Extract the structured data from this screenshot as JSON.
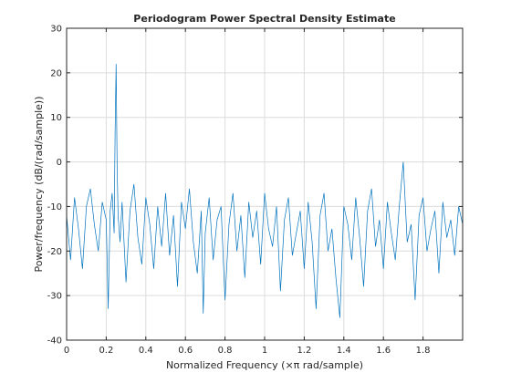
{
  "chart_data": {
    "type": "line",
    "title": "Periodogram Power Spectral Density Estimate",
    "xlabel": "Normalized Frequency  (×π rad/sample)",
    "ylabel": "Power/frequency (dB/(rad/sample))",
    "xlim": [
      0,
      2
    ],
    "ylim": [
      -40,
      30
    ],
    "xticks": [
      0,
      0.2,
      0.4,
      0.6,
      0.8,
      1,
      1.2,
      1.4,
      1.6,
      1.8
    ],
    "xtick_labels": [
      "0",
      "0.2",
      "0.4",
      "0.6",
      "0.8",
      "1",
      "1.2",
      "1.4",
      "1.6",
      "1.8"
    ],
    "yticks": [
      -40,
      -30,
      -20,
      -10,
      0,
      10,
      20,
      30
    ],
    "ytick_labels": [
      "-40",
      "-30",
      "-20",
      "-10",
      "0",
      "10",
      "20",
      "30"
    ],
    "grid": true,
    "series": [
      {
        "color": "#0072bd",
        "x": [
          0,
          0.02,
          0.04,
          0.06,
          0.08,
          0.1,
          0.12,
          0.14,
          0.16,
          0.18,
          0.2,
          0.21,
          0.22,
          0.23,
          0.24,
          0.245,
          0.25,
          0.255,
          0.26,
          0.27,
          0.28,
          0.3,
          0.32,
          0.34,
          0.36,
          0.38,
          0.4,
          0.42,
          0.44,
          0.46,
          0.48,
          0.5,
          0.52,
          0.54,
          0.56,
          0.58,
          0.6,
          0.62,
          0.64,
          0.66,
          0.68,
          0.69,
          0.7,
          0.72,
          0.74,
          0.76,
          0.78,
          0.8,
          0.82,
          0.84,
          0.86,
          0.88,
          0.9,
          0.92,
          0.94,
          0.96,
          0.98,
          1.0,
          1.02,
          1.04,
          1.06,
          1.08,
          1.1,
          1.12,
          1.14,
          1.16,
          1.18,
          1.2,
          1.22,
          1.24,
          1.26,
          1.28,
          1.3,
          1.32,
          1.34,
          1.36,
          1.38,
          1.4,
          1.42,
          1.44,
          1.46,
          1.48,
          1.5,
          1.52,
          1.54,
          1.56,
          1.58,
          1.6,
          1.62,
          1.64,
          1.66,
          1.68,
          1.7,
          1.72,
          1.74,
          1.76,
          1.78,
          1.8,
          1.82,
          1.84,
          1.86,
          1.88,
          1.9,
          1.92,
          1.94,
          1.96,
          1.98,
          2.0
        ],
        "y": [
          -12,
          -22,
          -8,
          -15,
          -24,
          -10,
          -6,
          -14,
          -20,
          -9,
          -13,
          -33,
          -11,
          -7,
          -16,
          7,
          22,
          -1,
          -12,
          -18,
          -9,
          -27,
          -11,
          -5,
          -17,
          -23,
          -8,
          -14,
          -24,
          -10,
          -19,
          -7,
          -21,
          -12,
          -28,
          -9,
          -15,
          -6,
          -18,
          -25,
          -11,
          -34,
          -16,
          -8,
          -22,
          -13,
          -10,
          -31,
          -14,
          -7,
          -20,
          -12,
          -26,
          -9,
          -17,
          -11,
          -23,
          -7,
          -15,
          -19,
          -10,
          -29,
          -13,
          -8,
          -21,
          -16,
          -11,
          -24,
          -9,
          -18,
          -33,
          -12,
          -7,
          -20,
          -15,
          -26,
          -35,
          -10,
          -14,
          -22,
          -8,
          -17,
          -28,
          -11,
          -6,
          -19,
          -13,
          -24,
          -9,
          -16,
          -22,
          -10,
          0,
          -18,
          -14,
          -31,
          -12,
          -8,
          -20,
          -15,
          -11,
          -25,
          -9,
          -17,
          -13,
          -21,
          -10,
          -14
        ]
      }
    ]
  }
}
